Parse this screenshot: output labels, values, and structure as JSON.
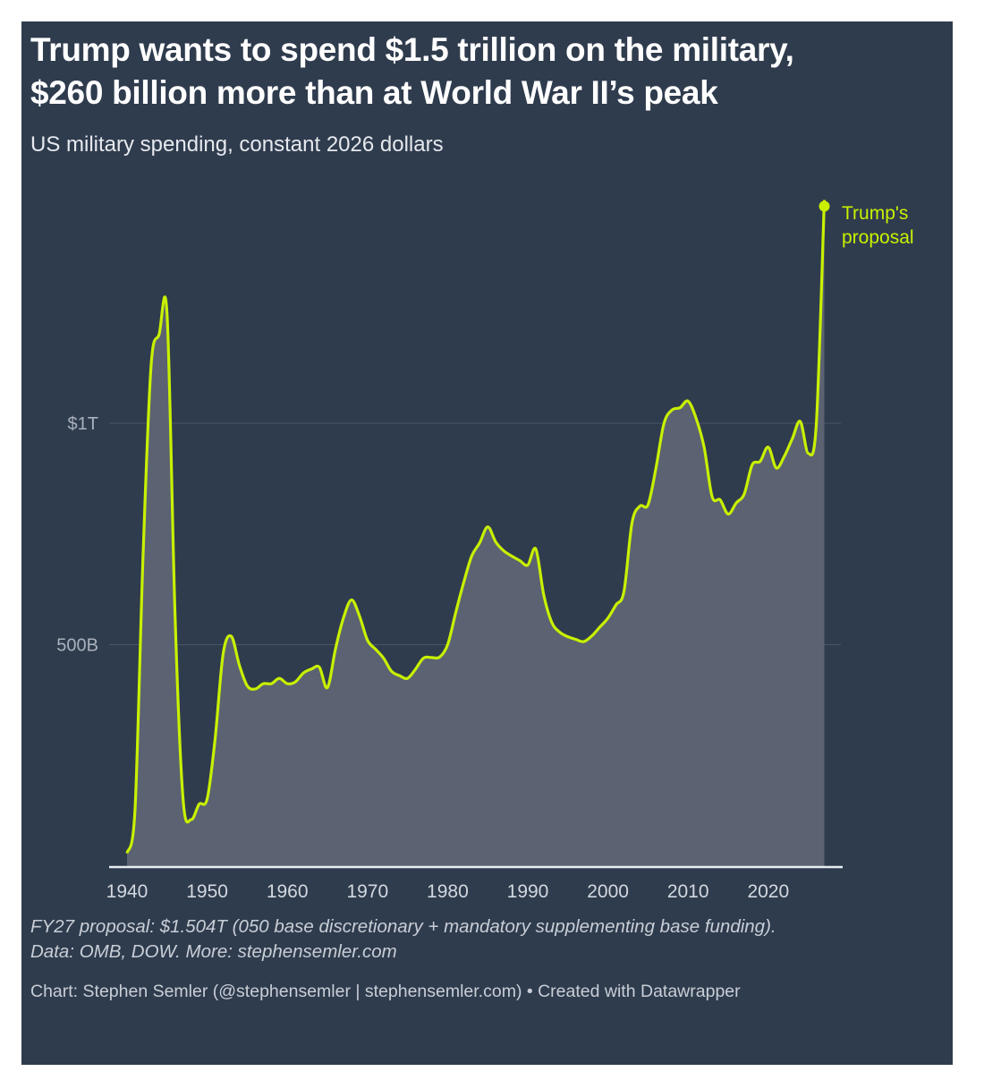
{
  "header": {
    "title_line1": "Trump wants to spend $1.5 trillion on the military,",
    "title_line2": "$260 billion more than at World War II’s peak",
    "subtitle": "US military spending, constant 2026 dollars"
  },
  "footer": {
    "note_line1": "FY27 proposal: $1.504T (050 base discretionary + mandatory supplementing base funding).",
    "note_line2": "Data: OMB, DOW. More: stephensemler.com",
    "credit": "Chart: Stephen Semler (@stephensemler | stephensemler.com) • Created with Datawrapper"
  },
  "colors": {
    "background": "#2f3c4e",
    "line": "#c8f000",
    "area": "#5b6272",
    "grid": "#4a5668"
  },
  "chart_data": {
    "type": "area",
    "title": "Trump wants to spend $1.5 trillion on the military, $260 billion more than at World War II’s peak",
    "subtitle": "US military spending, constant 2026 dollars",
    "xlabel": "",
    "ylabel": "",
    "unit": "billions of 2026 dollars",
    "xlim": [
      1940,
      2027
    ],
    "ylim": [
      0,
      1560
    ],
    "grid": true,
    "y_ticks": [
      {
        "value": 500,
        "label": "500B"
      },
      {
        "value": 1000,
        "label": "$1T"
      }
    ],
    "x_ticks": [
      {
        "value": 1940,
        "label": "1940"
      },
      {
        "value": 1950,
        "label": "1950"
      },
      {
        "value": 1960,
        "label": "1960"
      },
      {
        "value": 1970,
        "label": "1970"
      },
      {
        "value": 1980,
        "label": "1980"
      },
      {
        "value": 1990,
        "label": "1990"
      },
      {
        "value": 2000,
        "label": "2000"
      },
      {
        "value": 2010,
        "label": "2010"
      },
      {
        "value": 2020,
        "label": "2020"
      }
    ],
    "annotation": {
      "year": 2027,
      "value": 1504,
      "line1": "Trump's",
      "line2": "proposal"
    },
    "series": [
      {
        "name": "US military spending",
        "x": [
          1940,
          1941,
          1942,
          1943,
          1944,
          1945,
          1946,
          1947,
          1948,
          1949,
          1950,
          1951,
          1952,
          1953,
          1954,
          1955,
          1956,
          1957,
          1958,
          1959,
          1960,
          1961,
          1962,
          1963,
          1964,
          1965,
          1966,
          1967,
          1968,
          1969,
          1970,
          1971,
          1972,
          1973,
          1974,
          1975,
          1976,
          1977,
          1978,
          1979,
          1980,
          1981,
          1982,
          1983,
          1984,
          1985,
          1986,
          1987,
          1988,
          1989,
          1990,
          1991,
          1992,
          1993,
          1994,
          1995,
          1996,
          1997,
          1998,
          1999,
          2000,
          2001,
          2002,
          2003,
          2004,
          2005,
          2006,
          2007,
          2008,
          2009,
          2010,
          2011,
          2012,
          2013,
          2014,
          2015,
          2016,
          2017,
          2018,
          2019,
          2020,
          2021,
          2022,
          2023,
          2024,
          2025,
          2026,
          2027
        ],
        "values": [
          29,
          130,
          700,
          1130,
          1200,
          1244,
          560,
          150,
          105,
          140,
          152,
          290,
          480,
          519,
          455,
          407,
          400,
          412,
          412,
          424,
          412,
          416,
          436,
          445,
          449,
          403,
          490,
          560,
          601,
          565,
          510,
          490,
          470,
          440,
          430,
          424,
          445,
          470,
          471,
          472,
          500,
          572,
          640,
          700,
          730,
          766,
          732,
          712,
          700,
          690,
          680,
          716,
          612,
          550,
          528,
          518,
          512,
          507,
          520,
          540,
          560,
          590,
          620,
          775,
          813,
          816,
          900,
          1000,
          1030,
          1035,
          1050,
          1011,
          946,
          834,
          827,
          795,
          820,
          840,
          906,
          914,
          946,
          899,
          925,
          965,
          1004,
          932,
          1000,
          1504
        ]
      }
    ]
  }
}
